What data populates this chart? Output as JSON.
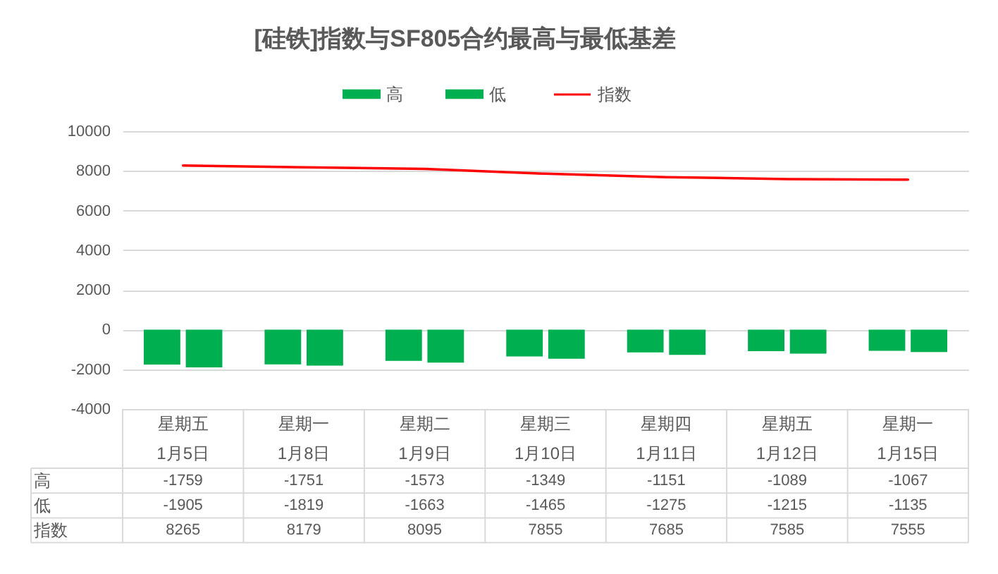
{
  "chart_data": {
    "type": "bar",
    "title": "[硅铁]指数与SF805合约最高与最低基差",
    "categories": [
      "星期五\n1月5日",
      "星期一\n1月8日",
      "星期二\n1月9日",
      "星期三\n1月10日",
      "星期四\n1月11日",
      "星期五\n1月12日",
      "星期一\n1月15日"
    ],
    "series": [
      {
        "name": "高",
        "color": "#00b050",
        "values": [
          -1759,
          -1751,
          -1573,
          -1349,
          -1151,
          -1089,
          -1067
        ]
      },
      {
        "name": "低",
        "color": "#00b050",
        "values": [
          -1905,
          -1819,
          -1663,
          -1465,
          -1275,
          -1215,
          -1135
        ]
      },
      {
        "name": "指数",
        "type": "line",
        "color": "#ff0000",
        "values": [
          8265,
          8179,
          8095,
          7855,
          7685,
          7585,
          7555
        ]
      }
    ],
    "ylim": [
      -4000,
      10000
    ],
    "yticks": [
      -4000,
      -2000,
      0,
      2000,
      4000,
      6000,
      8000,
      10000
    ],
    "grid": "y",
    "legend": "top",
    "data_labels": true
  }
}
